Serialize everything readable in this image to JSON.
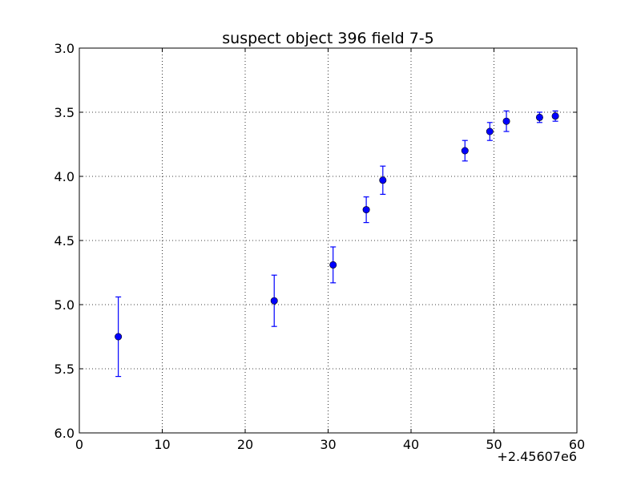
{
  "chart_data": {
    "type": "scatter",
    "title": "suspect object 396 field 7-5",
    "xlabel": "",
    "ylabel": "",
    "x_offset_label": "+2.45607e6",
    "xlim": [
      0,
      60
    ],
    "ylim": [
      6.0,
      3.0
    ],
    "y_inverted": true,
    "grid": true,
    "x_ticks": [
      "0",
      "10",
      "20",
      "30",
      "40",
      "50",
      "60"
    ],
    "y_ticks": [
      "3.0",
      "3.5",
      "4.0",
      "4.5",
      "5.0",
      "5.5",
      "6.0"
    ],
    "marker_color": "#0000ff",
    "points": [
      {
        "x": 4.7,
        "y": 5.25,
        "err": 0.31
      },
      {
        "x": 23.5,
        "y": 4.97,
        "err": 0.2
      },
      {
        "x": 30.6,
        "y": 4.69,
        "err": 0.14
      },
      {
        "x": 34.6,
        "y": 4.26,
        "err": 0.1
      },
      {
        "x": 36.6,
        "y": 4.03,
        "err": 0.11
      },
      {
        "x": 46.5,
        "y": 3.8,
        "err": 0.08
      },
      {
        "x": 49.5,
        "y": 3.65,
        "err": 0.07
      },
      {
        "x": 51.5,
        "y": 3.57,
        "err": 0.08
      },
      {
        "x": 55.5,
        "y": 3.54,
        "err": 0.04
      },
      {
        "x": 57.4,
        "y": 3.53,
        "err": 0.04
      }
    ]
  }
}
